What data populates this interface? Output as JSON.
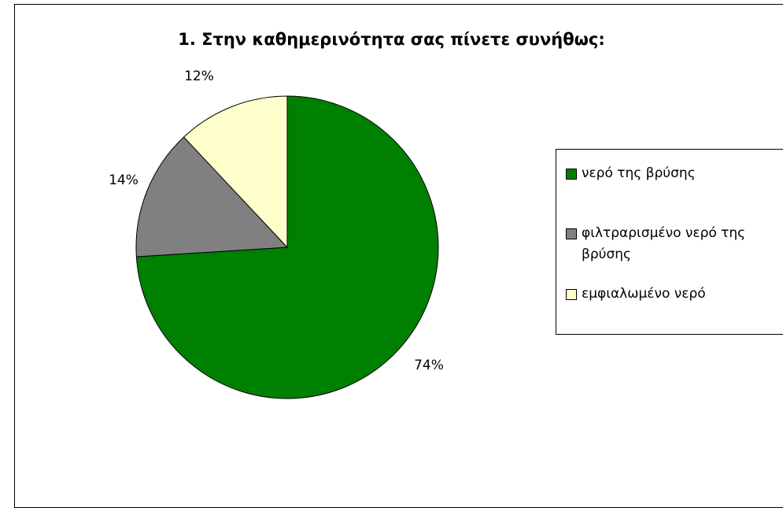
{
  "chart_data": {
    "type": "pie",
    "title": "1. Στην καθημερινότητα σας πίνετε συνήθως:",
    "slices": [
      {
        "label": "νερό της βρύσης",
        "value": 74,
        "display": "74%",
        "color": "#008000"
      },
      {
        "label": "φιλτραρισμένο νερό της βρύσης",
        "value": 14,
        "display": "14%",
        "color": "#808080"
      },
      {
        "label": "εμφιαλωμένο νερό",
        "value": 12,
        "display": "12%",
        "color": "#ffffcc"
      }
    ],
    "legend_position": "right"
  }
}
